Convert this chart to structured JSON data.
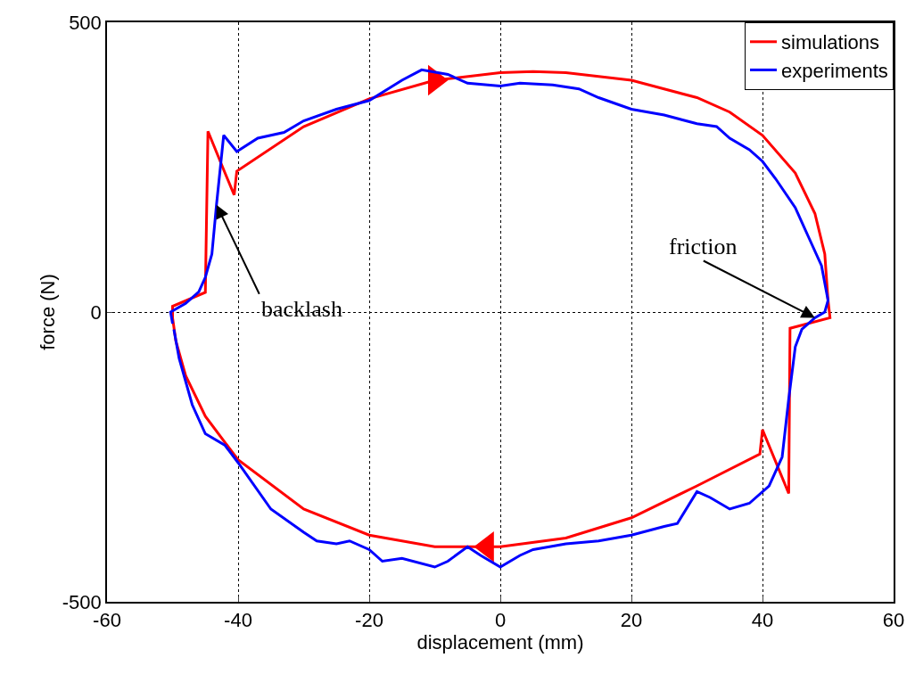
{
  "chart_data": {
    "type": "line",
    "xlabel": "displacement (mm)",
    "ylabel": "force (N)",
    "xlim": [
      -60,
      60
    ],
    "xticks": [
      -60,
      -40,
      -20,
      0,
      20,
      40,
      60
    ],
    "ylim": [
      -500,
      500
    ],
    "yticks": [
      -500,
      0,
      500
    ],
    "grid": true,
    "legend": "top right",
    "marker": "none",
    "line_style": "solid",
    "series": [
      {
        "name": "simulations",
        "color": "#ff0000",
        "x": [
          -50,
          -50,
          -45,
          -44.6,
          -42,
          -40.6,
          -40.2,
          -30,
          -20,
          -10,
          0,
          5,
          10,
          20,
          30,
          35,
          40,
          45,
          48,
          49.5,
          50,
          50.3,
          44.2,
          44,
          40,
          39.6,
          30,
          20,
          10,
          0,
          -10,
          -20,
          -30,
          -40,
          -45,
          -48,
          -49.5,
          -50,
          -50
        ],
        "values": [
          -10,
          10,
          34,
          312,
          240,
          202,
          243,
          320,
          368,
          400,
          413,
          415,
          413,
          400,
          370,
          345,
          305,
          240,
          170,
          100,
          20,
          -10,
          -28,
          -313,
          -203,
          -245,
          -300,
          -355,
          -390,
          -405,
          -405,
          -385,
          -340,
          -255,
          -180,
          -110,
          -50,
          -10,
          10
        ]
      },
      {
        "type": "scatter",
        "color": "#ff0000",
        "marker": "triangle",
        "x": [
          -10,
          -2
        ],
        "values": [
          400,
          -405
        ]
      },
      {
        "name": "experiments",
        "color": "#0000ff",
        "x": [
          -50,
          -50.3,
          -48,
          -46,
          -45,
          -44,
          -43.3,
          -42.2,
          -40.2,
          -37,
          -33,
          -30,
          -25,
          -20,
          -15,
          -12,
          -8,
          -5,
          0,
          3,
          8,
          12,
          15,
          20,
          25,
          30,
          33,
          35,
          38,
          40,
          42,
          45,
          47,
          49,
          50,
          49.5,
          48,
          46,
          45,
          44,
          43,
          41,
          38,
          35,
          32,
          30,
          27,
          25,
          20,
          15,
          10,
          5,
          3,
          0,
          -3,
          -5,
          -8,
          -10,
          -15,
          -18,
          -20,
          -23,
          -25,
          -28,
          -30,
          -35,
          -40,
          -42,
          -45,
          -47,
          -49,
          -49.8
        ],
        "values": [
          -20,
          0,
          15,
          35,
          60,
          100,
          185,
          305,
          277,
          300,
          310,
          330,
          350,
          365,
          400,
          418,
          410,
          395,
          390,
          395,
          392,
          385,
          370,
          350,
          340,
          325,
          320,
          300,
          280,
          260,
          230,
          180,
          130,
          80,
          20,
          0,
          -10,
          -30,
          -60,
          -150,
          -250,
          -300,
          -330,
          -340,
          -320,
          -310,
          -365,
          -370,
          -385,
          -395,
          -400,
          -410,
          -420,
          -440,
          -420,
          -405,
          -430,
          -440,
          -425,
          -430,
          -410,
          -395,
          -400,
          -395,
          -380,
          -340,
          -260,
          -230,
          -210,
          -160,
          -80,
          -30
        ]
      }
    ],
    "annotations": [
      {
        "text": "backlash",
        "x": -43.3,
        "y": 185
      },
      {
        "text": "friction",
        "x": 48,
        "y": -10
      }
    ]
  }
}
